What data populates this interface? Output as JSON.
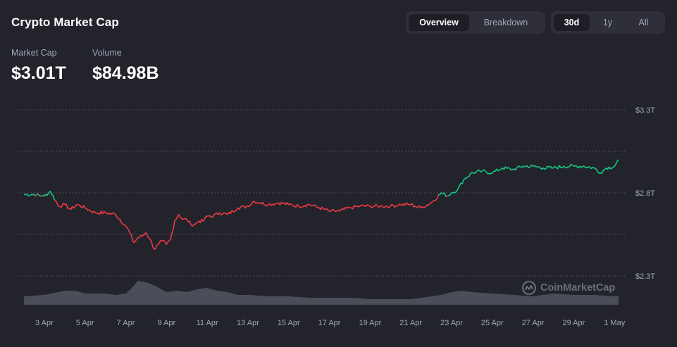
{
  "header": {
    "title": "Crypto Market Cap",
    "view_tabs": [
      {
        "label": "Overview",
        "active": true
      },
      {
        "label": "Breakdown",
        "active": false
      }
    ],
    "range_tabs": [
      {
        "label": "30d",
        "active": true
      },
      {
        "label": "1y",
        "active": false
      },
      {
        "label": "All",
        "active": false
      }
    ]
  },
  "stats": {
    "market_cap_label": "Market Cap",
    "market_cap_value": "$3.01T",
    "volume_label": "Volume",
    "volume_value": "$84.98B"
  },
  "watermark": "CoinMarketCap",
  "colors": {
    "background": "#22232b",
    "up": "#16c784",
    "down": "#ea3943",
    "volume": "#5a5c68",
    "grid": "#5a5c68",
    "muted_text": "#a1a7bb"
  },
  "chart_data": {
    "type": "line",
    "title": "",
    "xlabel": "",
    "ylabel": "",
    "x_tick_labels": [
      "3 Apr",
      "5 Apr",
      "7 Apr",
      "9 Apr",
      "11 Apr",
      "13 Apr",
      "15 Apr",
      "17 Apr",
      "19 Apr",
      "21 Apr",
      "23 Apr",
      "25 Apr",
      "27 Apr",
      "29 Apr",
      "1 May"
    ],
    "x_tick_days": [
      2,
      4,
      6,
      8,
      10,
      12,
      14,
      16,
      18,
      20,
      22,
      24,
      26,
      28,
      30
    ],
    "y_tick_labels": [
      "$3.3T",
      "$2.8T",
      "$2.3T"
    ],
    "y_tick_values": [
      3.3,
      2.8,
      2.3
    ],
    "ylim": [
      2.3,
      3.3
    ],
    "baseline_value": 2.78,
    "grid": "horizontal dotted",
    "series": [
      {
        "x_days": [
          1.0,
          1.5,
          2.0,
          2.3,
          2.7,
          3.0,
          3.3,
          3.6,
          4.0,
          4.5,
          5.0,
          5.5,
          6.0,
          6.2,
          6.4,
          6.6,
          6.8,
          7.0,
          7.2,
          7.4,
          7.6,
          7.8,
          8.0,
          8.2,
          8.4,
          8.6,
          8.8,
          9.0,
          9.2,
          9.4,
          9.6,
          9.8,
          10.0,
          10.3,
          10.6,
          11.0,
          11.5,
          12.0,
          12.3,
          12.6,
          13.0,
          13.5,
          14.0,
          14.5,
          15.0,
          15.5,
          16.0,
          16.5,
          17.0,
          17.5,
          18.0,
          18.5,
          19.0,
          19.5,
          20.0,
          20.2,
          20.5,
          21.0,
          21.5,
          21.8,
          22.0,
          22.3,
          22.6,
          23.0,
          23.5,
          24.0,
          24.5,
          25.0,
          25.5,
          26.0,
          26.5,
          27.0,
          27.5,
          28.0,
          28.5,
          29.0,
          29.3,
          29.6,
          30.0,
          30.2
        ],
        "values": [
          2.79,
          2.79,
          2.78,
          2.81,
          2.72,
          2.73,
          2.7,
          2.73,
          2.71,
          2.68,
          2.68,
          2.67,
          2.6,
          2.56,
          2.5,
          2.53,
          2.54,
          2.56,
          2.52,
          2.46,
          2.49,
          2.51,
          2.49,
          2.52,
          2.63,
          2.67,
          2.64,
          2.64,
          2.61,
          2.61,
          2.63,
          2.63,
          2.66,
          2.66,
          2.68,
          2.67,
          2.71,
          2.72,
          2.75,
          2.74,
          2.73,
          2.74,
          2.73,
          2.72,
          2.73,
          2.71,
          2.69,
          2.69,
          2.71,
          2.72,
          2.72,
          2.72,
          2.72,
          2.73,
          2.73,
          2.72,
          2.71,
          2.74,
          2.8,
          2.78,
          2.8,
          2.82,
          2.88,
          2.92,
          2.93,
          2.92,
          2.95,
          2.94,
          2.96,
          2.96,
          2.95,
          2.95,
          2.96,
          2.96,
          2.96,
          2.95,
          2.92,
          2.95,
          2.96,
          3.0
        ]
      }
    ],
    "volume": {
      "x_days": [
        1.0,
        2.0,
        3.0,
        3.5,
        4.0,
        5.0,
        5.5,
        6.0,
        6.3,
        6.6,
        7.0,
        7.5,
        8.0,
        8.5,
        9.0,
        9.5,
        10.0,
        10.5,
        11.0,
        11.5,
        12.0,
        13.0,
        14.0,
        15.0,
        16.0,
        17.0,
        18.0,
        19.0,
        20.0,
        21.0,
        21.5,
        22.0,
        22.5,
        23.0,
        24.0,
        25.0,
        26.0,
        27.0,
        28.0,
        29.0,
        30.0,
        30.2
      ],
      "relative_height": [
        0.3,
        0.35,
        0.5,
        0.5,
        0.4,
        0.4,
        0.35,
        0.4,
        0.6,
        0.85,
        0.8,
        0.65,
        0.45,
        0.5,
        0.45,
        0.55,
        0.6,
        0.5,
        0.45,
        0.35,
        0.35,
        0.3,
        0.3,
        0.25,
        0.25,
        0.25,
        0.2,
        0.2,
        0.2,
        0.3,
        0.35,
        0.45,
        0.5,
        0.45,
        0.4,
        0.35,
        0.3,
        0.4,
        0.35,
        0.35,
        0.3,
        0.3
      ]
    }
  }
}
